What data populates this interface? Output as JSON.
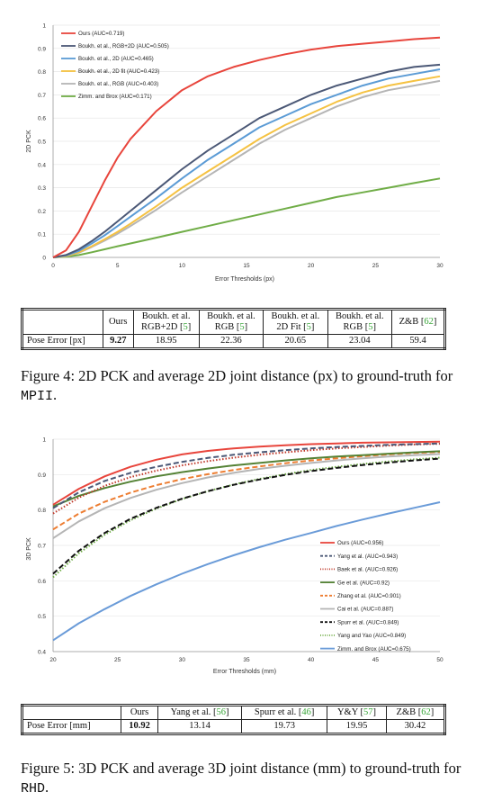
{
  "figure4": {
    "chart_data": {
      "type": "line",
      "xlabel": "Error Thresholds (px)",
      "ylabel": "2D PCK",
      "xlim": [
        0,
        30
      ],
      "ylim": [
        0,
        1
      ],
      "xticks": [
        "0",
        "5",
        "10",
        "15",
        "20",
        "25",
        "30"
      ],
      "yticks": [
        "0",
        "0.1",
        "0.2",
        "0.3",
        "0.4",
        "0.5",
        "0.6",
        "0.7",
        "0.8",
        "0.9",
        "1"
      ],
      "x": [
        0,
        1,
        2,
        3,
        4,
        5,
        6,
        8,
        10,
        12,
        14,
        16,
        18,
        20,
        22,
        24,
        26,
        28,
        30
      ],
      "series": [
        {
          "name": "Ours (AUC=0.719)",
          "color": "#e8453c",
          "dash": "solid",
          "values": [
            0,
            0.03,
            0.11,
            0.22,
            0.33,
            0.43,
            0.51,
            0.63,
            0.72,
            0.78,
            0.82,
            0.85,
            0.875,
            0.895,
            0.91,
            0.92,
            0.93,
            0.94,
            0.947
          ]
        },
        {
          "name": "Boukh. et al., RGB+2D (AUC=0.505)",
          "color": "#4b5876",
          "dash": "solid",
          "values": [
            0,
            0.01,
            0.035,
            0.07,
            0.11,
            0.155,
            0.2,
            0.29,
            0.38,
            0.46,
            0.53,
            0.6,
            0.65,
            0.7,
            0.74,
            0.77,
            0.8,
            0.82,
            0.83
          ]
        },
        {
          "name": "Boukh. et al., 2D (AUC=0.465)",
          "color": "#5b9bd5",
          "dash": "solid",
          "values": [
            0,
            0.008,
            0.028,
            0.06,
            0.095,
            0.135,
            0.175,
            0.255,
            0.34,
            0.42,
            0.49,
            0.56,
            0.61,
            0.66,
            0.7,
            0.74,
            0.77,
            0.79,
            0.81
          ]
        },
        {
          "name": "Boukh. et al., 2D fit (AUC=0.423)",
          "color": "#f5c242",
          "dash": "solid",
          "values": [
            0,
            0.006,
            0.022,
            0.048,
            0.078,
            0.11,
            0.145,
            0.22,
            0.3,
            0.37,
            0.44,
            0.51,
            0.57,
            0.62,
            0.67,
            0.71,
            0.74,
            0.76,
            0.78
          ]
        },
        {
          "name": "Boukh. et al., RGB (AUC=0.403)",
          "color": "#b5b5b5",
          "dash": "solid",
          "values": [
            0,
            0.005,
            0.02,
            0.045,
            0.072,
            0.102,
            0.135,
            0.205,
            0.28,
            0.35,
            0.42,
            0.49,
            0.55,
            0.6,
            0.65,
            0.69,
            0.72,
            0.74,
            0.76
          ]
        },
        {
          "name": "Zimm. and Brox (AUC=0.171)",
          "color": "#70ad47",
          "dash": "solid",
          "values": [
            0,
            0.003,
            0.01,
            0.022,
            0.035,
            0.048,
            0.06,
            0.085,
            0.11,
            0.135,
            0.16,
            0.185,
            0.21,
            0.235,
            0.26,
            0.28,
            0.3,
            0.32,
            0.34
          ]
        }
      ]
    },
    "table": {
      "headers": [
        {
          "l1": "Ours",
          "l2": "",
          "cite": ""
        },
        {
          "l1": "Boukh. et al.",
          "l2": "RGB+2D",
          "cite": "5"
        },
        {
          "l1": "Boukh. et al.",
          "l2": "RGB",
          "cite": "5"
        },
        {
          "l1": "Boukh. et al.",
          "l2": "2D Fit",
          "cite": "5"
        },
        {
          "l1": "Boukh. et al.",
          "l2": "RGB",
          "cite": "5"
        },
        {
          "l1": "Z&B",
          "l2": "",
          "cite": "62"
        }
      ],
      "row_label": "Pose Error [px]",
      "values": [
        "9.27",
        "18.95",
        "22.36",
        "20.65",
        "23.04",
        "59.4"
      ]
    },
    "caption": {
      "text": "Figure 4:  2D PCK and average 2D joint distance (px) to ground-truth for ",
      "dataset": "MPII",
      "end": "."
    }
  },
  "figure5": {
    "chart_data": {
      "type": "line",
      "xlabel": "Error Thresholds (mm)",
      "ylabel": "3D PCK",
      "xlim": [
        20,
        50
      ],
      "ylim": [
        0.4,
        1
      ],
      "xticks": [
        "20",
        "25",
        "30",
        "35",
        "40",
        "45",
        "50"
      ],
      "yticks": [
        "0.4",
        "0.5",
        "0.6",
        "0.7",
        "0.8",
        "0.9",
        "1"
      ],
      "x": [
        20,
        22,
        24,
        26,
        28,
        30,
        32,
        34,
        36,
        38,
        40,
        42,
        44,
        46,
        48,
        50
      ],
      "series": [
        {
          "name": "Ours (AUC=0.956)",
          "color": "#e8453c",
          "dash": "solid",
          "values": [
            0.815,
            0.86,
            0.895,
            0.922,
            0.942,
            0.957,
            0.967,
            0.974,
            0.979,
            0.983,
            0.986,
            0.988,
            0.99,
            0.991,
            0.992,
            0.993
          ]
        },
        {
          "name": "Yang et al. (AUC=0.943)",
          "color": "#4b5876",
          "dash": "dashed",
          "values": [
            0.805,
            0.85,
            0.882,
            0.905,
            0.922,
            0.936,
            0.947,
            0.956,
            0.963,
            0.969,
            0.974,
            0.978,
            0.981,
            0.984,
            0.986,
            0.988
          ]
        },
        {
          "name": "Baek et al. (AUC=0.926)",
          "color": "#c0392b",
          "dash": "dotted",
          "values": [
            0.79,
            0.835,
            0.868,
            0.893,
            0.911,
            0.926,
            0.938,
            0.948,
            0.956,
            0.963,
            0.969,
            0.974,
            0.978,
            0.982,
            0.985,
            0.987
          ]
        },
        {
          "name": "Ge et al. (AUC=0.92)",
          "color": "#548235",
          "dash": "solid",
          "values": [
            0.81,
            0.84,
            0.862,
            0.88,
            0.895,
            0.907,
            0.917,
            0.926,
            0.933,
            0.94,
            0.946,
            0.951,
            0.955,
            0.959,
            0.963,
            0.966
          ]
        },
        {
          "name": "Zhang et al. (AUC=0.901)",
          "color": "#ed7d31",
          "dash": "dashed",
          "values": [
            0.745,
            0.79,
            0.823,
            0.849,
            0.87,
            0.887,
            0.901,
            0.913,
            0.923,
            0.932,
            0.94,
            0.946,
            0.952,
            0.957,
            0.961,
            0.964
          ]
        },
        {
          "name": "Cai et al. (AUC=0.887)",
          "color": "#b5b5b5",
          "dash": "solid",
          "values": [
            0.72,
            0.768,
            0.805,
            0.834,
            0.857,
            0.876,
            0.892,
            0.905,
            0.916,
            0.925,
            0.933,
            0.94,
            0.946,
            0.951,
            0.955,
            0.958
          ]
        },
        {
          "name": "Spurr et al. (AUC=0.849)",
          "color": "#111111",
          "dash": "dashed",
          "values": [
            0.62,
            0.685,
            0.735,
            0.775,
            0.806,
            0.832,
            0.853,
            0.871,
            0.886,
            0.899,
            0.91,
            0.919,
            0.927,
            0.934,
            0.94,
            0.945
          ]
        },
        {
          "name": "Yang and Yao (AUC=0.849)",
          "color": "#70ad47",
          "dash": "dotted",
          "values": [
            0.61,
            0.678,
            0.73,
            0.771,
            0.804,
            0.831,
            0.853,
            0.872,
            0.888,
            0.901,
            0.913,
            0.922,
            0.93,
            0.937,
            0.943,
            0.948
          ]
        },
        {
          "name": "Zimm. and Brox (AUC=0.675)",
          "color": "#6a9bd8",
          "dash": "solid",
          "values": [
            0.432,
            0.48,
            0.52,
            0.557,
            0.59,
            0.62,
            0.647,
            0.672,
            0.695,
            0.716,
            0.735,
            0.755,
            0.773,
            0.79,
            0.806,
            0.822
          ]
        }
      ]
    },
    "table": {
      "headers": [
        {
          "l1": "Ours",
          "cite": ""
        },
        {
          "l1": "Yang et al.",
          "cite": "56"
        },
        {
          "l1": "Spurr et al.",
          "cite": "46"
        },
        {
          "l1": "Y&Y",
          "cite": "57"
        },
        {
          "l1": "Z&B",
          "cite": "62"
        }
      ],
      "row_label": "Pose Error [mm]",
      "values": [
        "10.92",
        "13.14",
        "19.73",
        "19.95",
        "30.42"
      ]
    },
    "caption": {
      "text": "Figure 5:  3D PCK and average 3D joint distance (mm) to ground-truth for ",
      "dataset": "RHD",
      "end": "."
    }
  }
}
